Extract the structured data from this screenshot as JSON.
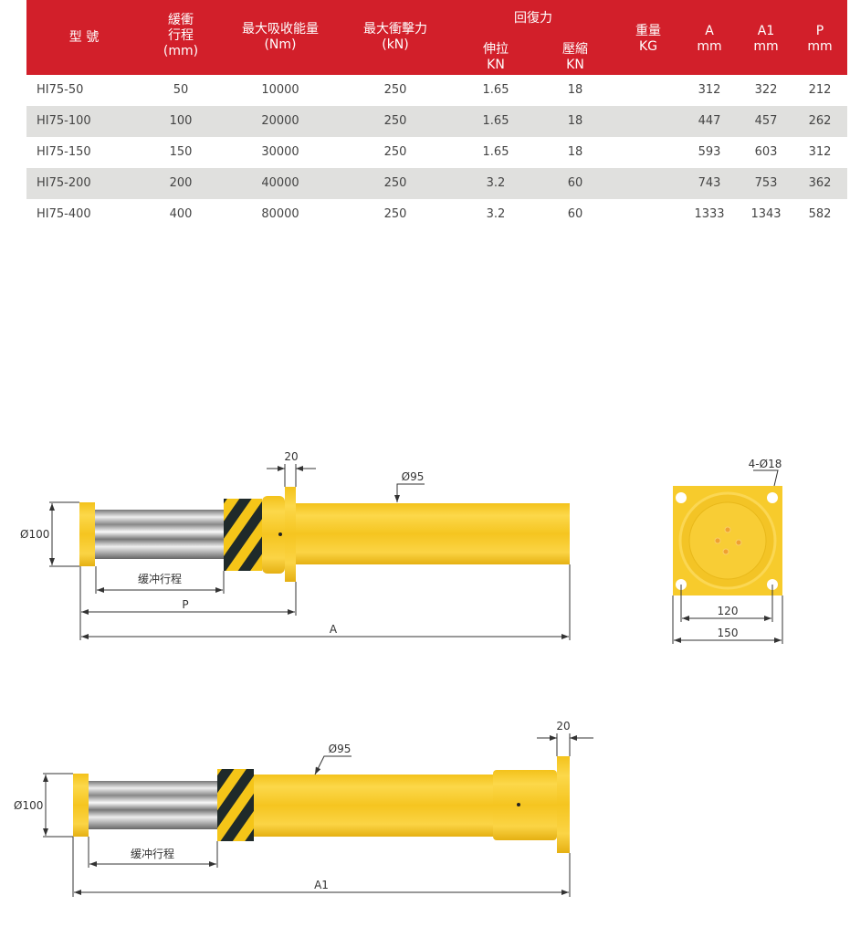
{
  "table": {
    "headers": {
      "model": "型 號",
      "stroke": [
        "緩衝",
        "行程",
        "(mm)"
      ],
      "energy": [
        "最大吸收能量",
        "(Nm)"
      ],
      "force": [
        "最大衝擊力",
        "(kN)"
      ],
      "restoring": "回復力",
      "tension": [
        "伸拉",
        "KN"
      ],
      "compression": [
        "壓縮",
        "KN"
      ],
      "weight": [
        "重量",
        "KG"
      ],
      "a": [
        "A",
        "mm"
      ],
      "a1": [
        "A1",
        "mm"
      ],
      "p": [
        "P",
        "mm"
      ]
    },
    "rows": [
      [
        "HI75-50",
        "50",
        "10000",
        "250",
        "1.65",
        "18",
        "",
        "312",
        "322",
        "212"
      ],
      [
        "HI75-100",
        "100",
        "20000",
        "250",
        "1.65",
        "18",
        "",
        "447",
        "457",
        "262"
      ],
      [
        "HI75-150",
        "150",
        "30000",
        "250",
        "1.65",
        "18",
        "",
        "593",
        "603",
        "312"
      ],
      [
        "HI75-200",
        "200",
        "40000",
        "250",
        "3.2",
        "60",
        "",
        "743",
        "753",
        "362"
      ],
      [
        "HI75-400",
        "400",
        "80000",
        "250",
        "3.2",
        "60",
        "",
        "1333",
        "1343",
        "582"
      ]
    ]
  },
  "colors": {
    "header": "#d21f2a",
    "alt_row": "#e0e0de",
    "body": "#f5c518"
  },
  "drawing1": {
    "dia100": "Ø100",
    "stroke": "缓冲行程",
    "p": "P",
    "a": "A",
    "flange": "20",
    "dia95": "Ø95"
  },
  "flange_view": {
    "holes": "4-Ø18",
    "pitch": "120",
    "width": "150"
  },
  "drawing2": {
    "dia100": "Ø100",
    "stroke": "缓冲行程",
    "a1": "A1",
    "flange": "20",
    "dia95": "Ø95"
  }
}
